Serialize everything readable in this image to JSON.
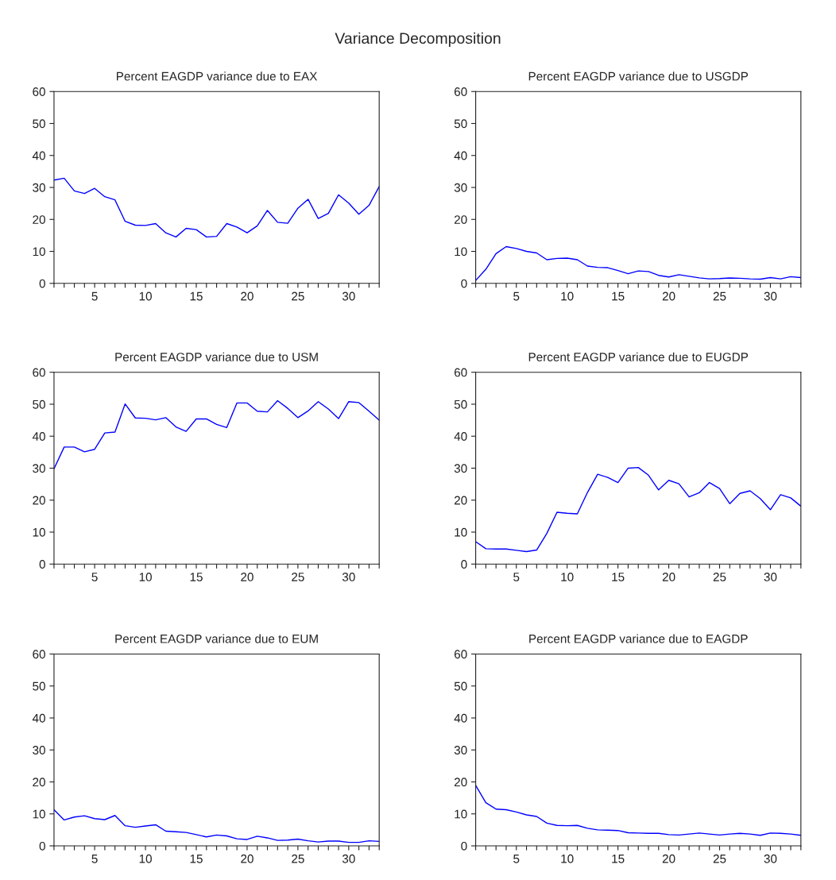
{
  "chart_data": [
    {
      "type": "line",
      "title": "Percent EAGDP variance due to EAX",
      "annotations": [
        "Variance Decomposition"
      ],
      "grid": false,
      "marker": "none",
      "line_style": "solid",
      "x": [
        1,
        2,
        3,
        4,
        5,
        6,
        7,
        8,
        9,
        10,
        11,
        12,
        13,
        14,
        15,
        16,
        17,
        18,
        19,
        20,
        21,
        22,
        23,
        24,
        25,
        26,
        27,
        28,
        29,
        30,
        31,
        32,
        33
      ],
      "series": [
        {
          "color": "#0000ff",
          "values": [
            32.3,
            32.9,
            28.9,
            28.1,
            29.7,
            27.1,
            26.1,
            19.4,
            18.2,
            18.1,
            18.7,
            15.8,
            14.5,
            17.2,
            16.8,
            14.5,
            14.7,
            18.7,
            17.6,
            15.8,
            18.0,
            22.8,
            19.1,
            18.8,
            23.5,
            26.3,
            20.3,
            21.9,
            27.7,
            25.1,
            21.6,
            24.4,
            30.3
          ]
        }
      ],
      "xlim": [
        1,
        33
      ],
      "ylim": [
        0,
        60
      ],
      "yticks": [
        0,
        10,
        20,
        30,
        40,
        50,
        60
      ],
      "xticks": [
        {
          "value": 1,
          "label": null
        },
        {
          "value": 2,
          "label": null
        },
        {
          "value": 3,
          "label": null
        },
        {
          "value": 4,
          "label": null
        },
        5,
        {
          "value": 6,
          "label": null
        },
        {
          "value": 7,
          "label": null
        },
        {
          "value": 8,
          "label": null
        },
        {
          "value": 9,
          "label": null
        },
        10,
        {
          "value": 11,
          "label": null
        },
        {
          "value": 12,
          "label": null
        },
        {
          "value": 13,
          "label": null
        },
        {
          "value": 14,
          "label": null
        },
        15,
        {
          "value": 16,
          "label": null
        },
        {
          "value": 17,
          "label": null
        },
        {
          "value": 18,
          "label": null
        },
        {
          "value": 19,
          "label": null
        },
        20,
        {
          "value": 21,
          "label": null
        },
        {
          "value": 22,
          "label": null
        },
        {
          "value": 23,
          "label": null
        },
        {
          "value": 24,
          "label": null
        },
        25,
        {
          "value": 26,
          "label": null
        },
        {
          "value": 27,
          "label": null
        },
        {
          "value": 28,
          "label": null
        },
        {
          "value": 29,
          "label": null
        },
        30,
        {
          "value": 31,
          "label": null
        },
        {
          "value": 32,
          "label": null
        },
        {
          "value": 33,
          "label": null
        }
      ]
    },
    {
      "type": "line",
      "title": "Percent EAGDP variance due to USGDP",
      "grid": false,
      "marker": "none",
      "line_style": "solid",
      "x": [
        1,
        2,
        3,
        4,
        5,
        6,
        7,
        8,
        9,
        10,
        11,
        12,
        13,
        14,
        15,
        16,
        17,
        18,
        19,
        20,
        21,
        22,
        23,
        24,
        25,
        26,
        27,
        28,
        29,
        30,
        31,
        32,
        33
      ],
      "series": [
        {
          "color": "#0000ff",
          "values": [
            0.9,
            4.4,
            9.3,
            11.5,
            10.9,
            10.0,
            9.5,
            7.4,
            7.8,
            7.9,
            7.4,
            5.4,
            5.0,
            4.9,
            4.0,
            3.0,
            3.9,
            3.7,
            2.5,
            2.0,
            2.7,
            2.2,
            1.7,
            1.4,
            1.5,
            1.7,
            1.6,
            1.4,
            1.3,
            1.8,
            1.4,
            2.1,
            1.8
          ]
        }
      ],
      "xlim": [
        1,
        33
      ],
      "ylim": [
        0,
        60
      ],
      "yticks": [
        0,
        10,
        20,
        30,
        40,
        50,
        60
      ],
      "xticks": [
        {
          "value": 1,
          "label": null
        },
        {
          "value": 2,
          "label": null
        },
        {
          "value": 3,
          "label": null
        },
        {
          "value": 4,
          "label": null
        },
        5,
        {
          "value": 6,
          "label": null
        },
        {
          "value": 7,
          "label": null
        },
        {
          "value": 8,
          "label": null
        },
        {
          "value": 9,
          "label": null
        },
        10,
        {
          "value": 11,
          "label": null
        },
        {
          "value": 12,
          "label": null
        },
        {
          "value": 13,
          "label": null
        },
        {
          "value": 14,
          "label": null
        },
        15,
        {
          "value": 16,
          "label": null
        },
        {
          "value": 17,
          "label": null
        },
        {
          "value": 18,
          "label": null
        },
        {
          "value": 19,
          "label": null
        },
        20,
        {
          "value": 21,
          "label": null
        },
        {
          "value": 22,
          "label": null
        },
        {
          "value": 23,
          "label": null
        },
        {
          "value": 24,
          "label": null
        },
        25,
        {
          "value": 26,
          "label": null
        },
        {
          "value": 27,
          "label": null
        },
        {
          "value": 28,
          "label": null
        },
        {
          "value": 29,
          "label": null
        },
        30,
        {
          "value": 31,
          "label": null
        },
        {
          "value": 32,
          "label": null
        },
        {
          "value": 33,
          "label": null
        }
      ]
    },
    {
      "type": "line",
      "title": "Percent EAGDP variance due to USM",
      "grid": false,
      "marker": "none",
      "line_style": "solid",
      "x": [
        1,
        2,
        3,
        4,
        5,
        6,
        7,
        8,
        9,
        10,
        11,
        12,
        13,
        14,
        15,
        16,
        17,
        18,
        19,
        20,
        21,
        22,
        23,
        24,
        25,
        26,
        27,
        28,
        29,
        30,
        31,
        32,
        33
      ],
      "series": [
        {
          "color": "#0000ff",
          "values": [
            29.8,
            36.6,
            36.6,
            35.1,
            35.9,
            41.0,
            41.3,
            50.1,
            45.7,
            45.6,
            45.1,
            45.8,
            42.9,
            41.5,
            45.4,
            45.4,
            43.7,
            42.7,
            50.4,
            50.4,
            47.8,
            47.6,
            51.1,
            48.7,
            45.8,
            47.9,
            50.8,
            48.5,
            45.5,
            50.8,
            50.5,
            47.8,
            45.0
          ]
        }
      ],
      "xlim": [
        1,
        33
      ],
      "ylim": [
        0,
        60
      ],
      "yticks": [
        0,
        10,
        20,
        30,
        40,
        50,
        60
      ],
      "xticks": [
        {
          "value": 1,
          "label": null
        },
        {
          "value": 2,
          "label": null
        },
        {
          "value": 3,
          "label": null
        },
        {
          "value": 4,
          "label": null
        },
        5,
        {
          "value": 6,
          "label": null
        },
        {
          "value": 7,
          "label": null
        },
        {
          "value": 8,
          "label": null
        },
        {
          "value": 9,
          "label": null
        },
        10,
        {
          "value": 11,
          "label": null
        },
        {
          "value": 12,
          "label": null
        },
        {
          "value": 13,
          "label": null
        },
        {
          "value": 14,
          "label": null
        },
        15,
        {
          "value": 16,
          "label": null
        },
        {
          "value": 17,
          "label": null
        },
        {
          "value": 18,
          "label": null
        },
        {
          "value": 19,
          "label": null
        },
        20,
        {
          "value": 21,
          "label": null
        },
        {
          "value": 22,
          "label": null
        },
        {
          "value": 23,
          "label": null
        },
        {
          "value": 24,
          "label": null
        },
        25,
        {
          "value": 26,
          "label": null
        },
        {
          "value": 27,
          "label": null
        },
        {
          "value": 28,
          "label": null
        },
        {
          "value": 29,
          "label": null
        },
        30,
        {
          "value": 31,
          "label": null
        },
        {
          "value": 32,
          "label": null
        },
        {
          "value": 33,
          "label": null
        }
      ]
    },
    {
      "type": "line",
      "title": "Percent EAGDP variance due to EUGDP",
      "grid": false,
      "marker": "none",
      "line_style": "solid",
      "x": [
        1,
        2,
        3,
        4,
        5,
        6,
        7,
        8,
        9,
        10,
        11,
        12,
        13,
        14,
        15,
        16,
        17,
        18,
        19,
        20,
        21,
        22,
        23,
        24,
        25,
        26,
        27,
        28,
        29,
        30,
        31,
        32,
        33
      ],
      "series": [
        {
          "color": "#0000ff",
          "values": [
            7.0,
            4.8,
            4.7,
            4.7,
            4.3,
            3.9,
            4.4,
            9.6,
            16.2,
            15.9,
            15.7,
            22.4,
            28.1,
            27.1,
            25.5,
            30.0,
            30.2,
            27.8,
            23.2,
            26.2,
            25.1,
            21.0,
            22.3,
            25.5,
            23.6,
            18.9,
            22.1,
            22.9,
            20.5,
            17.0,
            21.7,
            20.7,
            18.1
          ]
        }
      ],
      "xlim": [
        1,
        33
      ],
      "ylim": [
        0,
        60
      ],
      "yticks": [
        0,
        10,
        20,
        30,
        40,
        50,
        60
      ],
      "xticks": [
        {
          "value": 1,
          "label": null
        },
        {
          "value": 2,
          "label": null
        },
        {
          "value": 3,
          "label": null
        },
        {
          "value": 4,
          "label": null
        },
        5,
        {
          "value": 6,
          "label": null
        },
        {
          "value": 7,
          "label": null
        },
        {
          "value": 8,
          "label": null
        },
        {
          "value": 9,
          "label": null
        },
        10,
        {
          "value": 11,
          "label": null
        },
        {
          "value": 12,
          "label": null
        },
        {
          "value": 13,
          "label": null
        },
        {
          "value": 14,
          "label": null
        },
        15,
        {
          "value": 16,
          "label": null
        },
        {
          "value": 17,
          "label": null
        },
        {
          "value": 18,
          "label": null
        },
        {
          "value": 19,
          "label": null
        },
        20,
        {
          "value": 21,
          "label": null
        },
        {
          "value": 22,
          "label": null
        },
        {
          "value": 23,
          "label": null
        },
        {
          "value": 24,
          "label": null
        },
        25,
        {
          "value": 26,
          "label": null
        },
        {
          "value": 27,
          "label": null
        },
        {
          "value": 28,
          "label": null
        },
        {
          "value": 29,
          "label": null
        },
        30,
        {
          "value": 31,
          "label": null
        },
        {
          "value": 32,
          "label": null
        },
        {
          "value": 33,
          "label": null
        }
      ]
    },
    {
      "type": "line",
      "title": "Percent EAGDP variance due to EUM",
      "grid": false,
      "marker": "none",
      "line_style": "solid",
      "x": [
        1,
        2,
        3,
        4,
        5,
        6,
        7,
        8,
        9,
        10,
        11,
        12,
        13,
        14,
        15,
        16,
        17,
        18,
        19,
        20,
        21,
        22,
        23,
        24,
        25,
        26,
        27,
        28,
        29,
        30,
        31,
        32,
        33
      ],
      "series": [
        {
          "color": "#0000ff",
          "values": [
            11.3,
            8.1,
            9.0,
            9.4,
            8.5,
            8.2,
            9.5,
            6.3,
            5.8,
            6.2,
            6.6,
            4.6,
            4.4,
            4.2,
            3.5,
            2.8,
            3.4,
            3.1,
            2.2,
            2.0,
            3.0,
            2.5,
            1.7,
            1.8,
            2.1,
            1.6,
            1.2,
            1.5,
            1.5,
            1.1,
            1.1,
            1.6,
            1.4
          ]
        }
      ],
      "xlim": [
        1,
        33
      ],
      "ylim": [
        0,
        60
      ],
      "yticks": [
        0,
        10,
        20,
        30,
        40,
        50,
        60
      ],
      "xticks": [
        {
          "value": 1,
          "label": null
        },
        {
          "value": 2,
          "label": null
        },
        {
          "value": 3,
          "label": null
        },
        {
          "value": 4,
          "label": null
        },
        5,
        {
          "value": 6,
          "label": null
        },
        {
          "value": 7,
          "label": null
        },
        {
          "value": 8,
          "label": null
        },
        {
          "value": 9,
          "label": null
        },
        10,
        {
          "value": 11,
          "label": null
        },
        {
          "value": 12,
          "label": null
        },
        {
          "value": 13,
          "label": null
        },
        {
          "value": 14,
          "label": null
        },
        15,
        {
          "value": 16,
          "label": null
        },
        {
          "value": 17,
          "label": null
        },
        {
          "value": 18,
          "label": null
        },
        {
          "value": 19,
          "label": null
        },
        20,
        {
          "value": 21,
          "label": null
        },
        {
          "value": 22,
          "label": null
        },
        {
          "value": 23,
          "label": null
        },
        {
          "value": 24,
          "label": null
        },
        25,
        {
          "value": 26,
          "label": null
        },
        {
          "value": 27,
          "label": null
        },
        {
          "value": 28,
          "label": null
        },
        {
          "value": 29,
          "label": null
        },
        30,
        {
          "value": 31,
          "label": null
        },
        {
          "value": 32,
          "label": null
        },
        {
          "value": 33,
          "label": null
        }
      ]
    },
    {
      "type": "line",
      "title": "Percent EAGDP variance due to EAGDP",
      "grid": false,
      "marker": "none",
      "line_style": "solid",
      "x": [
        1,
        2,
        3,
        4,
        5,
        6,
        7,
        8,
        9,
        10,
        11,
        12,
        13,
        14,
        15,
        16,
        17,
        18,
        19,
        20,
        21,
        22,
        23,
        24,
        25,
        26,
        27,
        28,
        29,
        30,
        31,
        32,
        33
      ],
      "series": [
        {
          "color": "#0000ff",
          "values": [
            18.9,
            13.5,
            11.5,
            11.3,
            10.6,
            9.7,
            9.2,
            7.1,
            6.4,
            6.3,
            6.4,
            5.5,
            5.0,
            4.9,
            4.8,
            4.1,
            4.0,
            3.9,
            3.9,
            3.5,
            3.4,
            3.7,
            4.0,
            3.7,
            3.4,
            3.7,
            3.9,
            3.7,
            3.3,
            4.0,
            3.9,
            3.7,
            3.3
          ]
        }
      ],
      "xlim": [
        1,
        33
      ],
      "ylim": [
        0,
        60
      ],
      "yticks": [
        0,
        10,
        20,
        30,
        40,
        50,
        60
      ],
      "xticks": [
        {
          "value": 1,
          "label": null
        },
        {
          "value": 2,
          "label": null
        },
        {
          "value": 3,
          "label": null
        },
        {
          "value": 4,
          "label": null
        },
        5,
        {
          "value": 6,
          "label": null
        },
        {
          "value": 7,
          "label": null
        },
        {
          "value": 8,
          "label": null
        },
        {
          "value": 9,
          "label": null
        },
        10,
        {
          "value": 11,
          "label": null
        },
        {
          "value": 12,
          "label": null
        },
        {
          "value": 13,
          "label": null
        },
        {
          "value": 14,
          "label": null
        },
        15,
        {
          "value": 16,
          "label": null
        },
        {
          "value": 17,
          "label": null
        },
        {
          "value": 18,
          "label": null
        },
        {
          "value": 19,
          "label": null
        },
        20,
        {
          "value": 21,
          "label": null
        },
        {
          "value": 22,
          "label": null
        },
        {
          "value": 23,
          "label": null
        },
        {
          "value": 24,
          "label": null
        },
        25,
        {
          "value": 26,
          "label": null
        },
        {
          "value": 27,
          "label": null
        },
        {
          "value": 28,
          "label": null
        },
        {
          "value": 29,
          "label": null
        },
        30,
        {
          "value": 31,
          "label": null
        },
        {
          "value": 32,
          "label": null
        },
        {
          "value": 33,
          "label": null
        }
      ]
    }
  ]
}
